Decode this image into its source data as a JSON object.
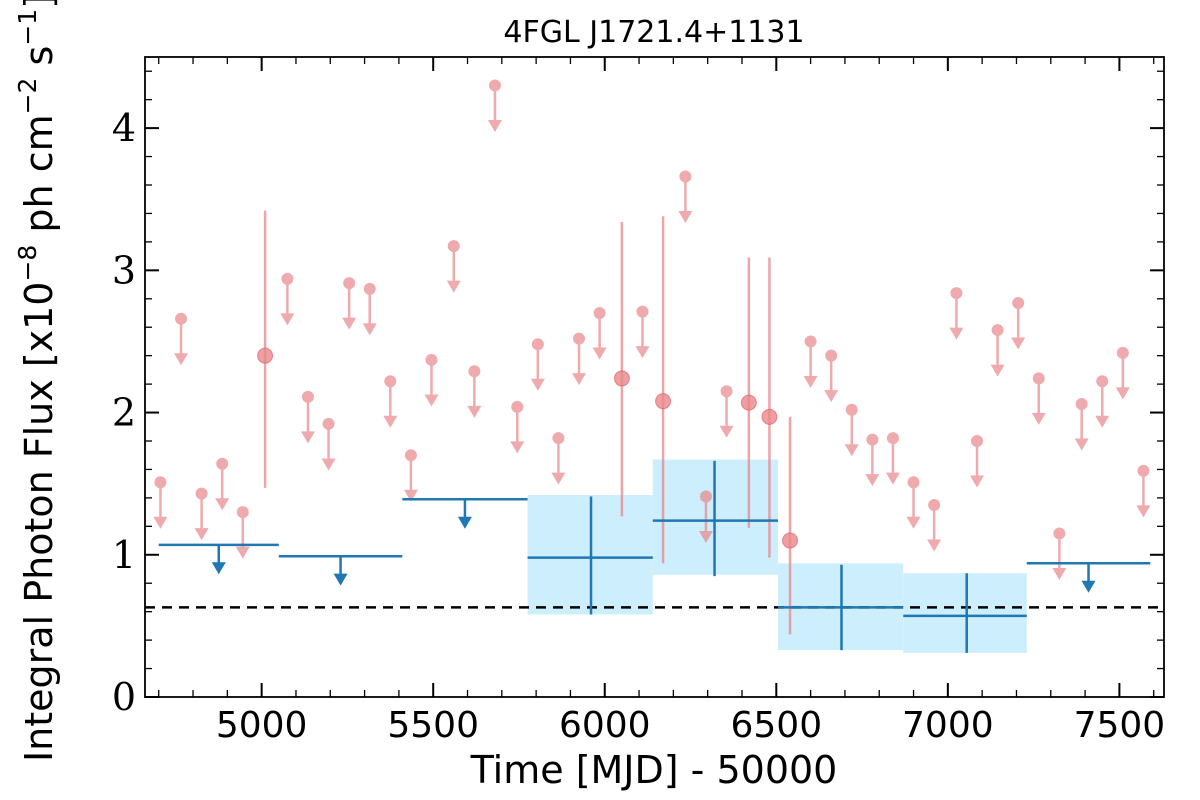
{
  "chart_data": {
    "type": "scatter",
    "title": "4FGL J1721.4+1131",
    "xlabel": "Time [MJD] - 50000",
    "ylabel": "Integral Photon Flux [x10",
    "ylabel_exp1": "−8",
    "ylabel_mid": " ph cm",
    "ylabel_exp2": "−2",
    "ylabel_end": " s",
    "ylabel_exp3": "−1",
    "ylabel_close": "]",
    "xlim": [
      4660,
      7630
    ],
    "ylim": [
      0,
      4.5
    ],
    "xticks": [
      5000,
      5500,
      6000,
      6500,
      7000,
      7500
    ],
    "yticks": [
      0,
      1,
      2,
      3,
      4
    ],
    "xtick_labels": [
      "5000",
      "5500",
      "6000",
      "6500",
      "7000",
      "7500"
    ],
    "ytick_labels": [
      "0",
      "1",
      "2",
      "3",
      "4"
    ],
    "colors": {
      "monthly": "#e8878a",
      "yearly": "#1f77b4",
      "yearly_band": "#cdeefc",
      "mean_line": "#000000"
    },
    "mean_flux": 0.63,
    "monthly_upper_limits": [
      {
        "x": 4705,
        "y": 1.51
      },
      {
        "x": 4765,
        "y": 2.66
      },
      {
        "x": 4825,
        "y": 1.43
      },
      {
        "x": 4885,
        "y": 1.64
      },
      {
        "x": 4945,
        "y": 1.3
      },
      {
        "x": 5075,
        "y": 2.94
      },
      {
        "x": 5135,
        "y": 2.11
      },
      {
        "x": 5195,
        "y": 1.92
      },
      {
        "x": 5255,
        "y": 2.91
      },
      {
        "x": 5315,
        "y": 2.87
      },
      {
        "x": 5375,
        "y": 2.22
      },
      {
        "x": 5435,
        "y": 1.7
      },
      {
        "x": 5495,
        "y": 2.37
      },
      {
        "x": 5560,
        "y": 3.17
      },
      {
        "x": 5620,
        "y": 2.29
      },
      {
        "x": 5680,
        "y": 4.3
      },
      {
        "x": 5745,
        "y": 2.04
      },
      {
        "x": 5805,
        "y": 2.48
      },
      {
        "x": 5865,
        "y": 1.82
      },
      {
        "x": 5925,
        "y": 2.52
      },
      {
        "x": 5985,
        "y": 2.7
      },
      {
        "x": 6110,
        "y": 2.71
      },
      {
        "x": 6235,
        "y": 3.66
      },
      {
        "x": 6295,
        "y": 1.41
      },
      {
        "x": 6355,
        "y": 2.15
      },
      {
        "x": 6600,
        "y": 2.5
      },
      {
        "x": 6660,
        "y": 2.4
      },
      {
        "x": 6720,
        "y": 2.02
      },
      {
        "x": 6780,
        "y": 1.81
      },
      {
        "x": 6840,
        "y": 1.82
      },
      {
        "x": 6900,
        "y": 1.51
      },
      {
        "x": 6960,
        "y": 1.35
      },
      {
        "x": 7025,
        "y": 2.84
      },
      {
        "x": 7085,
        "y": 1.8
      },
      {
        "x": 7145,
        "y": 2.58
      },
      {
        "x": 7205,
        "y": 2.77
      },
      {
        "x": 7265,
        "y": 2.24
      },
      {
        "x": 7325,
        "y": 1.15
      },
      {
        "x": 7390,
        "y": 2.06
      },
      {
        "x": 7450,
        "y": 2.22
      },
      {
        "x": 7510,
        "y": 2.42
      },
      {
        "x": 7570,
        "y": 1.59
      }
    ],
    "monthly_detections": [
      {
        "x": 5010,
        "y": 2.4,
        "ylo": 1.47,
        "yhi": 3.42
      },
      {
        "x": 6050,
        "y": 2.24,
        "ylo": 1.27,
        "yhi": 3.34
      },
      {
        "x": 6170,
        "y": 2.08,
        "ylo": 0.94,
        "yhi": 3.38
      },
      {
        "x": 6420,
        "y": 2.07,
        "ylo": 1.19,
        "yhi": 3.09
      },
      {
        "x": 6480,
        "y": 1.97,
        "ylo": 0.98,
        "yhi": 3.09
      },
      {
        "x": 6540,
        "y": 1.1,
        "ylo": 0.44,
        "yhi": 1.97
      }
    ],
    "yearly_upper_limits": [
      {
        "xmin": 4700,
        "xmax": 5050,
        "y": 1.07
      },
      {
        "xmin": 5050,
        "xmax": 5410,
        "y": 0.99
      },
      {
        "xmin": 5410,
        "xmax": 5775,
        "y": 1.39
      },
      {
        "xmin": 7230,
        "xmax": 7590,
        "y": 0.94
      }
    ],
    "yearly_detections": [
      {
        "x": 5960,
        "xmin": 5775,
        "xmax": 6140,
        "y": 0.98,
        "ylo": 0.58,
        "yhi": 1.41,
        "band_lo": 0.58,
        "band_hi": 1.42
      },
      {
        "x": 6320,
        "xmin": 6140,
        "xmax": 6505,
        "y": 1.24,
        "ylo": 0.85,
        "yhi": 1.66,
        "band_lo": 0.86,
        "band_hi": 1.67
      },
      {
        "x": 6690,
        "xmin": 6505,
        "xmax": 6870,
        "y": 0.63,
        "ylo": 0.33,
        "yhi": 0.93,
        "band_lo": 0.33,
        "band_hi": 0.94
      },
      {
        "x": 7055,
        "xmin": 6870,
        "xmax": 7230,
        "y": 0.57,
        "ylo": 0.31,
        "yhi": 0.87,
        "band_lo": 0.31,
        "band_hi": 0.87
      }
    ]
  }
}
